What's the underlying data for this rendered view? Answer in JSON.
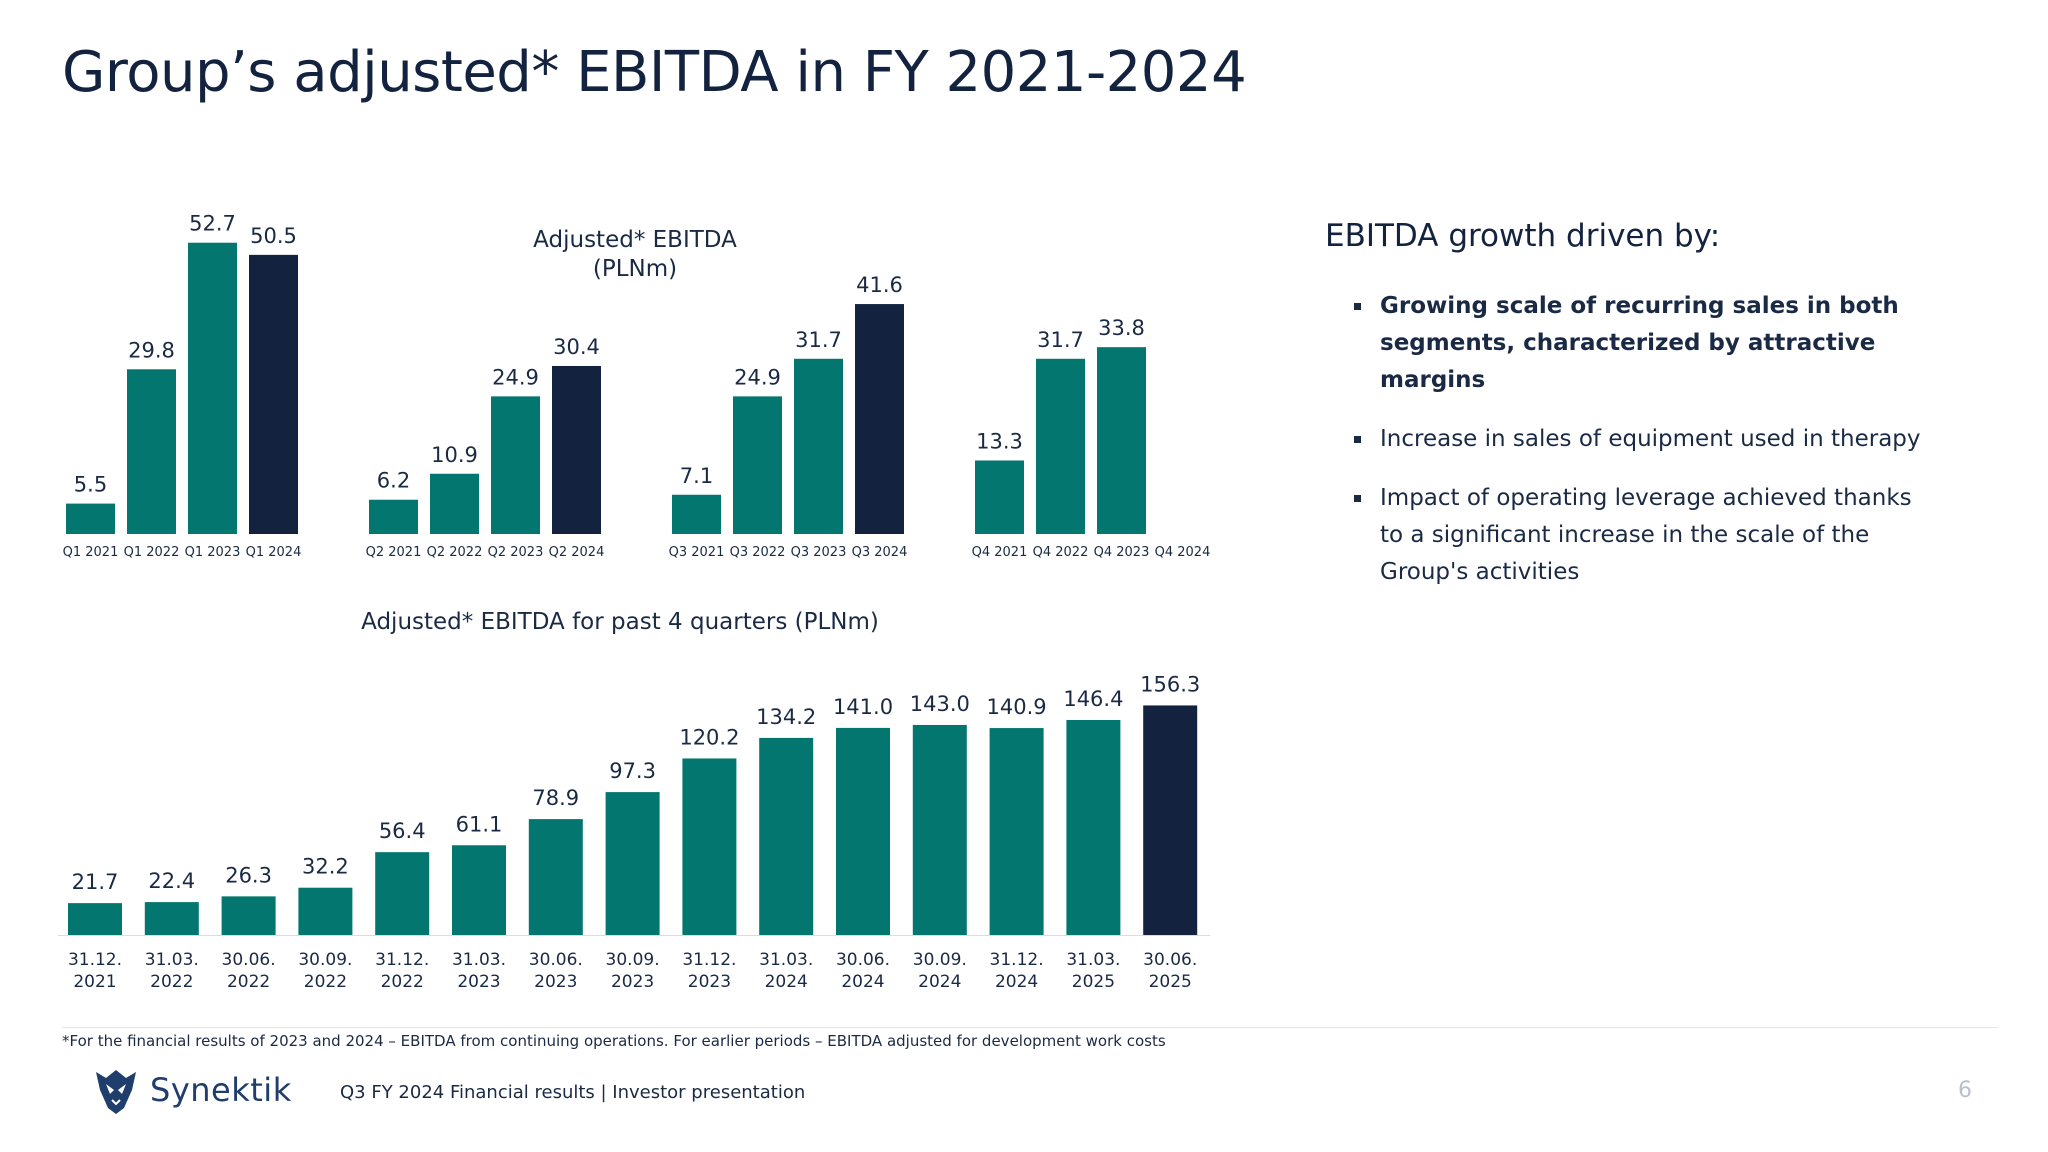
{
  "page": {
    "title": "Group’s adjusted* EBITDA in FY 2021-2024",
    "footnote": "*For the financial results of 2023 and 2024 – EBITDA from continuing operations. For earlier periods – EBITDA adjusted for development work costs",
    "footer": "Q3 FY 2024 Financial results |  Investor presentation",
    "page_number": "6",
    "logo_text": "Synektik"
  },
  "colors": {
    "teal": "#03776f",
    "navy": "#13233f"
  },
  "right_panel": {
    "heading": "EBITDA growth driven by:",
    "bullets": [
      {
        "text": "Growing scale of recurring sales in both segments, characterized by attractive margins",
        "bold": true
      },
      {
        "text": "Increase in sales of equipment used in therapy",
        "bold": false
      },
      {
        "text": "Impact of operating leverage achieved thanks to a significant increase in the scale of the Group's activities",
        "bold": false
      }
    ]
  },
  "chart_data": [
    {
      "type": "bar",
      "title": "Adjusted* EBITDA\n(PLNm)",
      "title_lines": [
        "Adjusted* EBITDA",
        "(PLNm)"
      ],
      "groups": [
        {
          "categories": [
            "Q1 2021",
            "Q1  2022",
            "Q1  2023",
            "Q1  2024"
          ],
          "values": [
            5.5,
            29.8,
            52.7,
            50.5
          ],
          "labels": [
            "5.5",
            "29.8",
            "52.7",
            "50.5"
          ]
        },
        {
          "categories": [
            "Q2 2021",
            "Q2 2022",
            "Q2 2023",
            "Q2 2024"
          ],
          "values": [
            6.2,
            10.9,
            24.9,
            30.4
          ],
          "labels": [
            "6.2",
            "10.9",
            "24.9",
            "30.4"
          ]
        },
        {
          "categories": [
            "Q3 2021",
            "Q3 2022",
            "Q3 2023",
            "Q3 2024"
          ],
          "values": [
            7.1,
            24.9,
            31.7,
            41.6
          ],
          "labels": [
            "7.1",
            "24.9",
            "31.7",
            "41.6"
          ]
        },
        {
          "categories": [
            "Q4 2021",
            "Q4 2022",
            "Q4 2023",
            "Q4 2024"
          ],
          "values": [
            13.3,
            31.7,
            33.8,
            null
          ],
          "labels": [
            "13.3",
            "31.7",
            "33.8",
            ""
          ]
        }
      ],
      "highlight": "last bar in each group (2024) in navy",
      "ylim": [
        0,
        55
      ],
      "grid": false
    },
    {
      "type": "bar",
      "title": "Adjusted* EBITDA for past 4 quarters (PLNm)",
      "categories": [
        [
          "31.12.",
          "2021"
        ],
        [
          "31.03.",
          "2022"
        ],
        [
          "30.06.",
          "2022"
        ],
        [
          "30.09.",
          "2022"
        ],
        [
          "31.12.",
          "2022"
        ],
        [
          "31.03.",
          "2023"
        ],
        [
          "30.06.",
          "2023"
        ],
        [
          "30.09.",
          "2023"
        ],
        [
          "31.12.",
          "2023"
        ],
        [
          "31.03.",
          "2024"
        ],
        [
          "30.06.",
          "2024"
        ],
        [
          "30.09.",
          "2024"
        ],
        [
          "31.12.",
          "2024"
        ],
        [
          "31.03.",
          "2025"
        ],
        [
          "30.06.",
          "2025"
        ]
      ],
      "values": [
        21.7,
        22.4,
        26.3,
        32.2,
        56.4,
        61.1,
        78.9,
        97.3,
        120.2,
        134.2,
        141.0,
        143.0,
        140.9,
        146.4,
        156.3
      ],
      "labels": [
        "21.7",
        "22.4",
        "26.3",
        "32.2",
        "56.4",
        "61.1",
        "78.9",
        "97.3",
        "120.2",
        "134.2",
        "141.0",
        "143.0",
        "140.9",
        "146.4",
        "156.3"
      ],
      "highlight": "last bar in navy",
      "ylim": [
        0,
        160
      ],
      "grid": false
    }
  ]
}
